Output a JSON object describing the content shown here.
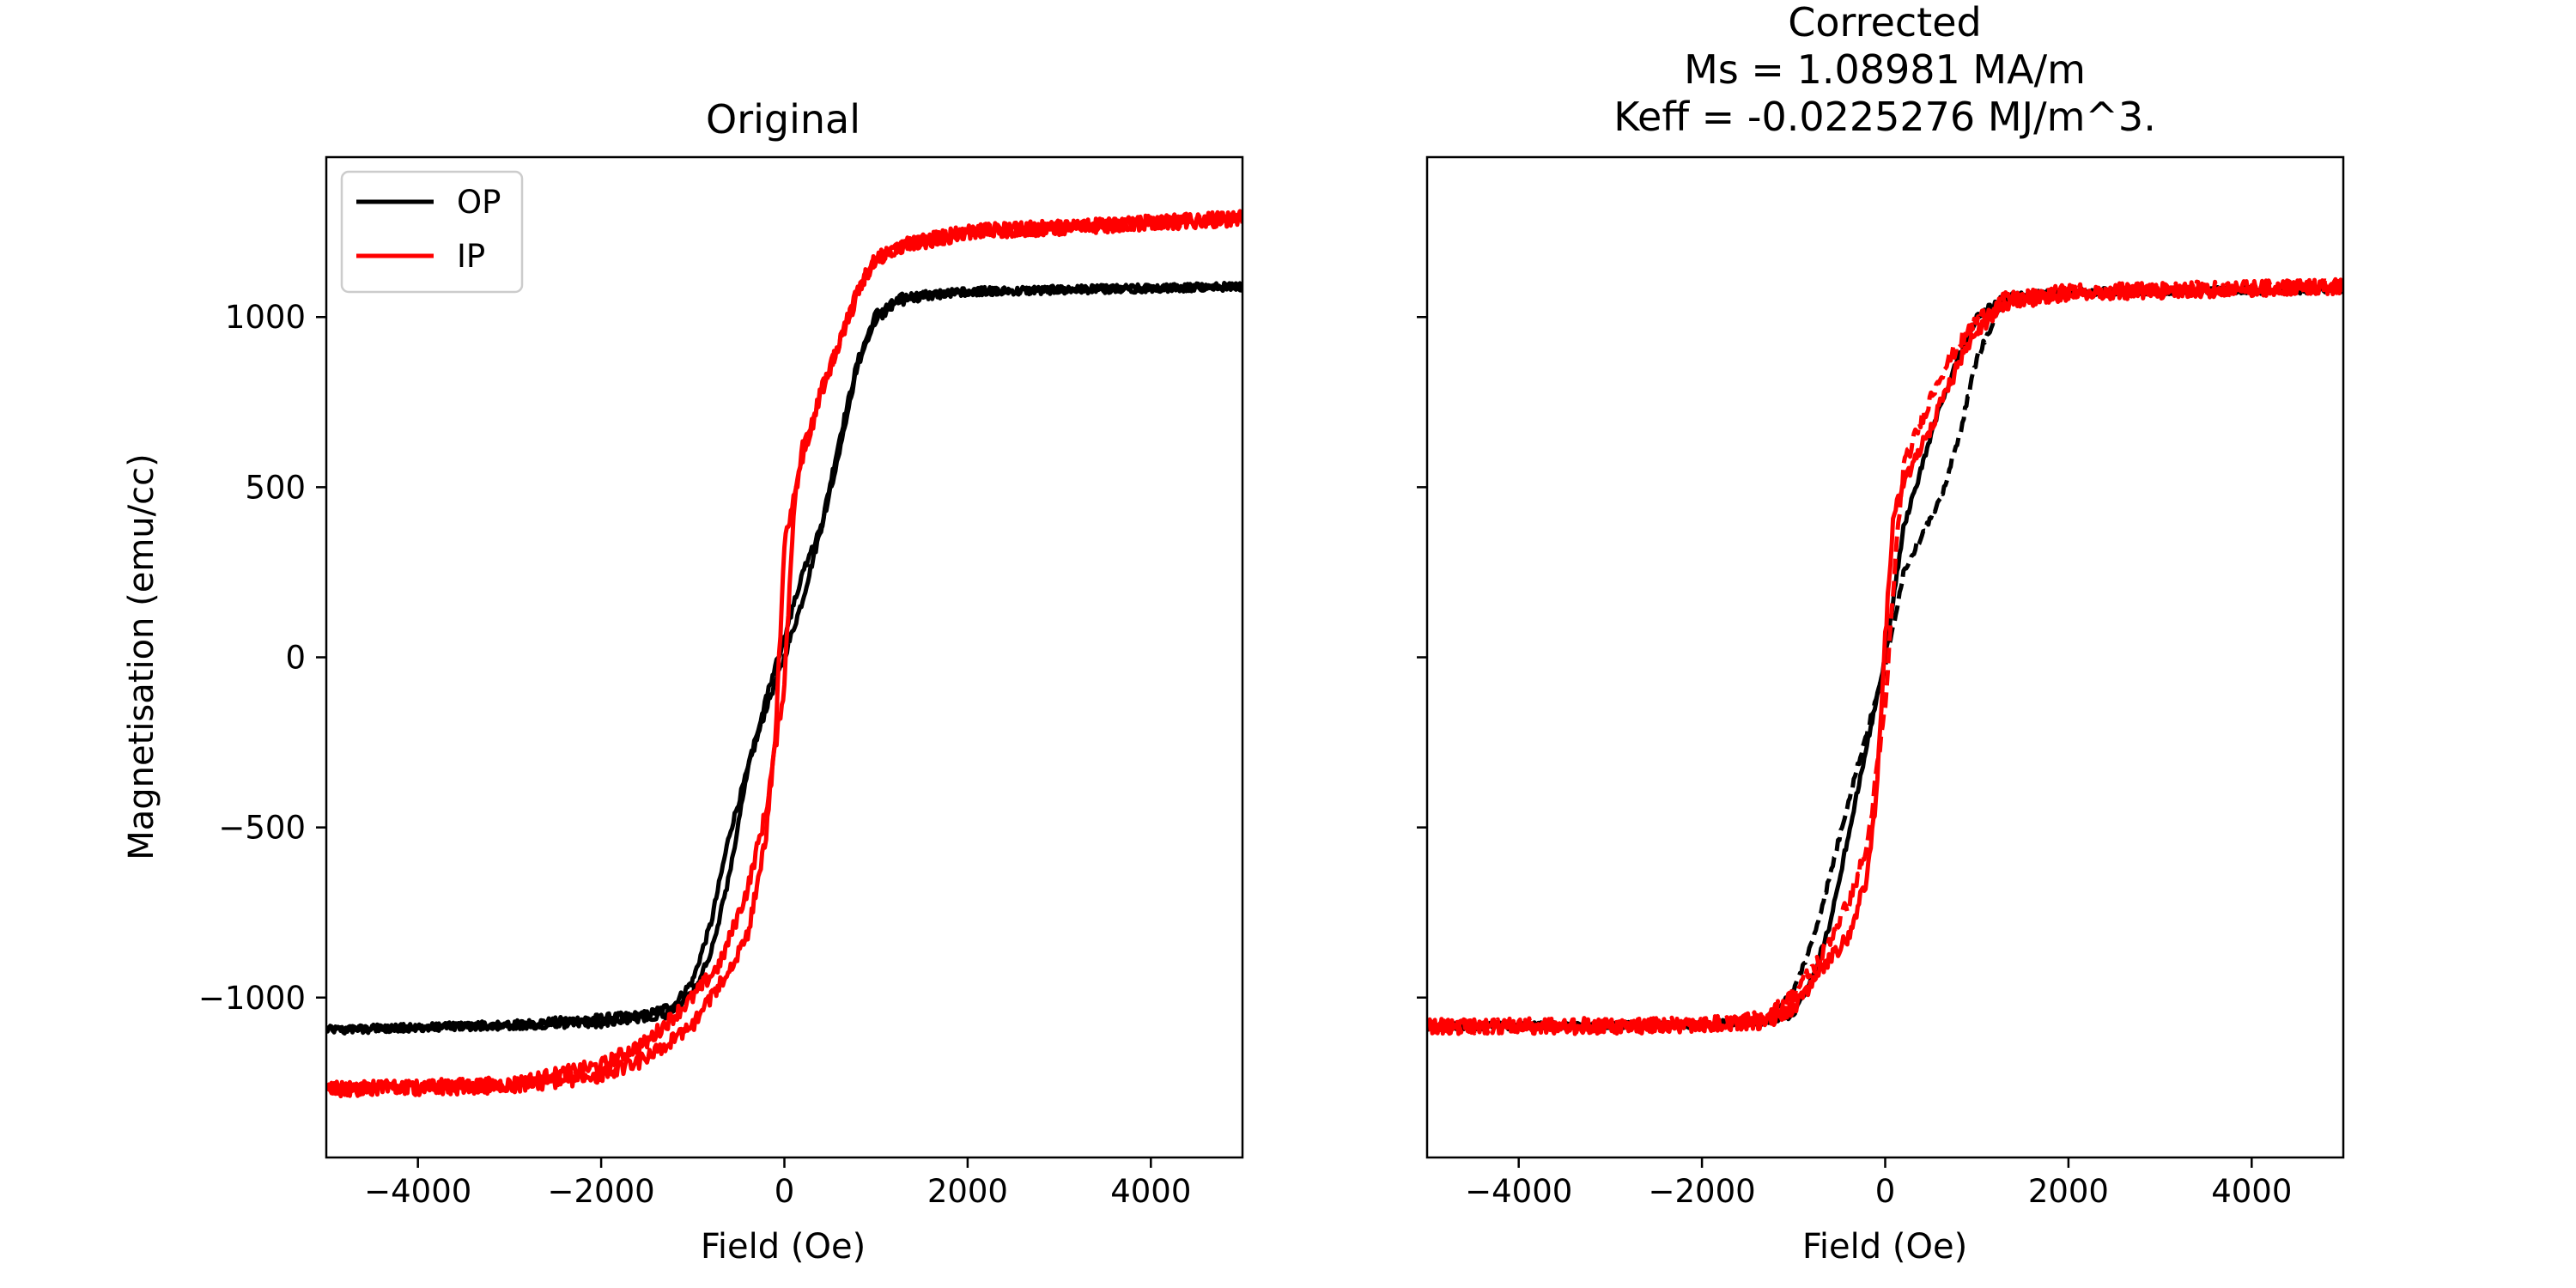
{
  "colors": {
    "op": "#000000",
    "ip": "#ff0000",
    "frame": "#000000",
    "legend_border": "#cccccc"
  },
  "chart_data": [
    {
      "type": "line",
      "title": "Original",
      "xlabel": "Field (Oe)",
      "ylabel": "Magnetisation (emu/cc)",
      "xlim": [
        -5000,
        5000
      ],
      "ylim": [
        -1470,
        1470
      ],
      "xticks": [
        -4000,
        -2000,
        0,
        2000,
        4000
      ],
      "xtick_labels": [
        "−4000",
        "−2000",
        "0",
        "2000",
        "4000"
      ],
      "yticks": [
        -1000,
        -500,
        0,
        500,
        1000
      ],
      "ytick_labels": [
        "−1000",
        "−500",
        "0",
        "500",
        "1000"
      ],
      "legend": {
        "placement": "upper-left",
        "entries": [
          "OP",
          "IP"
        ]
      },
      "grid": false,
      "series": [
        {
          "name": "OP",
          "color": "#000000",
          "dash": "solid",
          "noise": 12,
          "x": [
            -5000,
            -3000,
            -1500,
            -1200,
            -1000,
            -800,
            -600,
            -400,
            -200,
            0,
            200,
            400,
            600,
            800,
            1000,
            1300,
            2000,
            5000
          ],
          "y": [
            -1095,
            -1080,
            -1050,
            -1020,
            -950,
            -780,
            -520,
            -330,
            -150,
            0,
            170,
            380,
            640,
            870,
            1010,
            1060,
            1075,
            1090
          ]
        },
        {
          "name": "OP",
          "color": "#000000",
          "dash": "solid",
          "noise": 12,
          "x": [
            5000,
            2000,
            1500,
            1200,
            1000,
            800,
            600,
            400,
            200,
            0,
            -200,
            -400,
            -600,
            -800,
            -1000,
            -1300,
            -2000,
            -5000
          ],
          "y": [
            1090,
            1075,
            1060,
            1040,
            990,
            860,
            600,
            380,
            250,
            60,
            -120,
            -330,
            -640,
            -870,
            -990,
            -1050,
            -1075,
            -1095
          ]
        },
        {
          "name": "IP",
          "color": "#ff0000",
          "dash": "solid",
          "noise": 22,
          "x": [
            -5000,
            -3000,
            -2000,
            -1500,
            -1000,
            -700,
            -400,
            -200,
            0,
            100,
            200,
            400,
            600,
            800,
            1000,
            1300,
            2000,
            5000
          ],
          "y": [
            -1270,
            -1255,
            -1200,
            -1130,
            -1000,
            -900,
            -680,
            -450,
            -80,
            430,
            620,
            780,
            920,
            1070,
            1170,
            1210,
            1250,
            1290
          ]
        },
        {
          "name": "IP",
          "color": "#ff0000",
          "dash": "solid",
          "noise": 22,
          "x": [
            5000,
            2000,
            1300,
            1000,
            800,
            600,
            400,
            200,
            0,
            -100,
            -200,
            -400,
            -700,
            -1000,
            -1500,
            -2000,
            -3000,
            -5000
          ],
          "y": [
            1290,
            1250,
            1210,
            1170,
            1080,
            920,
            780,
            580,
            330,
            -250,
            -520,
            -820,
            -960,
            -1080,
            -1180,
            -1230,
            -1260,
            -1270
          ]
        }
      ]
    },
    {
      "type": "line",
      "title_lines": [
        "Corrected",
        "Ms = 1.08981 MA/m",
        "Keff = -0.0225276 MJ/m^3."
      ],
      "xlabel": "Field (Oe)",
      "ylabel": "",
      "xlim": [
        -5000,
        5000
      ],
      "ylim": [
        -1470,
        1470
      ],
      "xticks": [
        -4000,
        -2000,
        0,
        2000,
        4000
      ],
      "xtick_labels": [
        "−4000",
        "−2000",
        "0",
        "2000",
        "4000"
      ],
      "yticks": [
        -1000,
        -500,
        0,
        500,
        1000
      ],
      "ytick_labels_visible": false,
      "grid": false,
      "series": [
        {
          "color": "#000000",
          "dash": "solid",
          "noise": 10,
          "x": [
            5000,
            2000,
            1300,
            1000,
            800,
            600,
            400,
            200,
            0,
            -200,
            -400,
            -600,
            -800,
            -1000,
            -1300,
            -2000,
            -5000
          ],
          "y": [
            1080,
            1075,
            1060,
            1000,
            880,
            740,
            560,
            380,
            0,
            -260,
            -520,
            -780,
            -950,
            -1050,
            -1070,
            -1080,
            -1085
          ]
        },
        {
          "color": "#000000",
          "dash": "dashed",
          "noise": 10,
          "x": [
            -5000,
            -2000,
            -1300,
            -1000,
            -800,
            -600,
            -400,
            -200,
            0,
            200,
            400,
            600,
            800,
            1000,
            1300,
            2000,
            5000
          ],
          "y": [
            -1085,
            -1080,
            -1060,
            -980,
            -840,
            -640,
            -420,
            -220,
            -30,
            250,
            360,
            460,
            640,
            880,
            1050,
            1075,
            1080
          ]
        },
        {
          "color": "#ff0000",
          "dash": "solid",
          "noise": 22,
          "x": [
            5000,
            2000,
            1300,
            1000,
            800,
            600,
            400,
            200,
            100,
            0,
            -100,
            -200,
            -400,
            -700,
            -1000,
            -1300,
            -2000,
            -3000,
            -5000
          ],
          "y": [
            1090,
            1070,
            1040,
            960,
            860,
            740,
            620,
            510,
            440,
            60,
            -430,
            -650,
            -820,
            -920,
            -1030,
            -1070,
            -1080,
            -1085,
            -1085
          ]
        },
        {
          "color": "#ff0000",
          "dash": "dashed",
          "noise": 22,
          "x": [
            -5000,
            -2000,
            -1300,
            -1000,
            -700,
            -400,
            -200,
            0,
            100,
            200,
            400,
            600,
            800,
            1000,
            1300,
            2000,
            5000
          ],
          "y": [
            -1085,
            -1080,
            -1060,
            -990,
            -880,
            -720,
            -560,
            -150,
            250,
            560,
            700,
            830,
            920,
            990,
            1050,
            1075,
            1090
          ]
        }
      ]
    }
  ]
}
